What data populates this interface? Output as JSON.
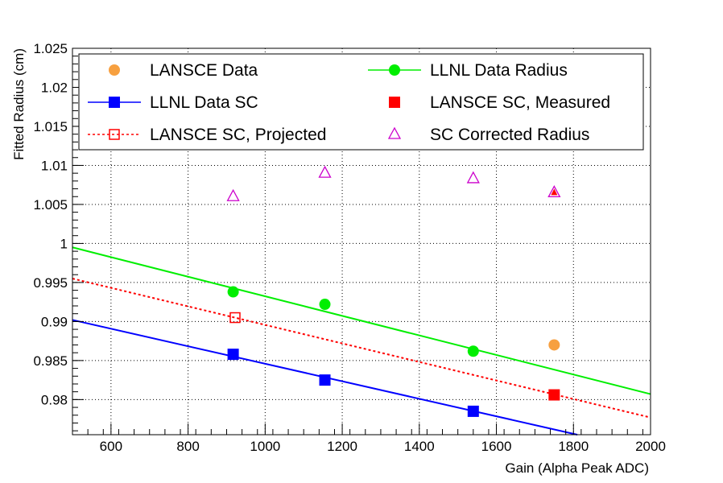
{
  "chart_data": {
    "type": "scatter",
    "title": "",
    "xlabel": "Gain (Alpha Peak ADC)",
    "ylabel": "Fitted Radius (cm)",
    "xlim": [
      500,
      2000
    ],
    "ylim": [
      0.9755,
      1.025
    ],
    "grid": true,
    "x_ticks": [
      "600",
      "800",
      "1000",
      "1200",
      "1400",
      "1600",
      "1800",
      "2000"
    ],
    "y_ticks": [
      "0.98",
      "0.985",
      "0.99",
      "0.995",
      "1",
      "1.005",
      "1.01",
      "1.015",
      "1.02",
      "1.025"
    ],
    "legend_position": "top",
    "series": [
      {
        "name": "LANSCE Data",
        "color": "#f7a040",
        "marker": "circle",
        "points": [
          [
            1750,
            0.987
          ]
        ]
      },
      {
        "name": "LLNL Data Radius",
        "color": "#00ee00",
        "marker": "circle",
        "points": [
          [
            917,
            0.9938
          ],
          [
            1155,
            0.9922
          ],
          [
            1540,
            0.9862
          ]
        ],
        "fit": {
          "x": [
            500,
            2000
          ],
          "y": [
            0.9995,
            0.9807
          ]
        }
      },
      {
        "name": "LLNL Data SC",
        "color": "#0000ff",
        "marker": "square",
        "points": [
          [
            917,
            0.9858
          ],
          [
            1155,
            0.9825
          ],
          [
            1540,
            0.9785
          ]
        ],
        "fit": {
          "x": [
            500,
            1810
          ],
          "y": [
            0.9902,
            0.9755
          ]
        }
      },
      {
        "name": "LANSCE SC, Measured",
        "color": "#ff0000",
        "marker": "square",
        "points": [
          [
            1750,
            0.9806
          ]
        ]
      },
      {
        "name": "LANSCE SC, Projected",
        "color": "#ff0000",
        "marker": "open-square",
        "points": [
          [
            922,
            0.9905
          ]
        ],
        "fit": {
          "x": [
            500,
            2000
          ],
          "y": [
            0.9955,
            0.9777
          ],
          "dashed": true
        }
      },
      {
        "name": "SC Corrected Radius",
        "color": "#cc00cc",
        "marker": "open-triangle",
        "points": [
          [
            917,
            1.006
          ],
          [
            1155,
            1.009
          ],
          [
            1540,
            1.0083
          ],
          [
            1750,
            1.0065
          ]
        ]
      }
    ],
    "legend_entries": [
      {
        "name": "LANSCE Data",
        "symbol": "circle",
        "color": "#f7a040",
        "line": false,
        "col": 0,
        "row": 0
      },
      {
        "name": "LLNL Data Radius",
        "symbol": "circle",
        "color": "#00ee00",
        "line": "solid",
        "col": 1,
        "row": 0
      },
      {
        "name": "LLNL Data SC",
        "symbol": "square",
        "color": "#0000ff",
        "line": "solid",
        "col": 0,
        "row": 1
      },
      {
        "name": "LANSCE SC, Measured",
        "symbol": "square",
        "color": "#ff0000",
        "line": false,
        "col": 1,
        "row": 1
      },
      {
        "name": "LANSCE SC, Projected",
        "symbol": "open-square",
        "color": "#ff0000",
        "line": "dashed",
        "col": 0,
        "row": 2
      },
      {
        "name": "SC Corrected Radius",
        "symbol": "open-triangle",
        "color": "#cc00cc",
        "line": false,
        "col": 1,
        "row": 2
      }
    ]
  }
}
